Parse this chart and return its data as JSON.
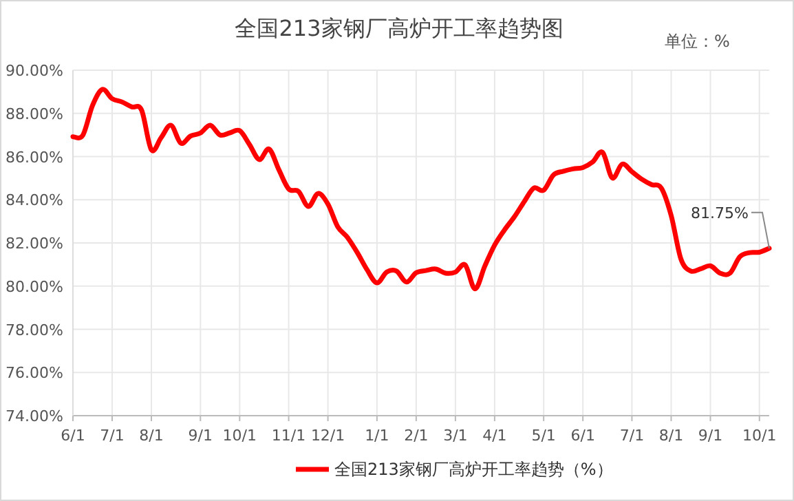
{
  "chart_data": {
    "type": "line",
    "title": "全国213家钢厂高炉开工率趋势图",
    "annotations": [
      "单位：%"
    ],
    "categories": [
      "6/1",
      null,
      null,
      null,
      "7/1",
      null,
      null,
      null,
      "8/1",
      null,
      null,
      null,
      null,
      "9/1",
      null,
      null,
      null,
      "10/1",
      null,
      null,
      null,
      null,
      "11/1",
      null,
      null,
      null,
      "12/1",
      null,
      null,
      null,
      null,
      "1/1",
      null,
      null,
      null,
      "2/1",
      null,
      null,
      null,
      "3/1",
      null,
      null,
      null,
      "4/1",
      null,
      null,
      null,
      null,
      "5/1",
      null,
      null,
      null,
      "6/1",
      null,
      null,
      null,
      null,
      "7/1",
      null,
      null,
      null,
      "8/1",
      null,
      null,
      null,
      "9/1",
      null,
      null,
      null,
      null,
      "10/1",
      null
    ],
    "series": [
      {
        "name": "全国213家钢厂高炉开工率趋势（%）",
        "color": "#ff0000",
        "values": [
          86.92,
          86.98,
          88.37,
          89.11,
          88.68,
          88.53,
          88.3,
          88.15,
          86.31,
          86.88,
          87.45,
          86.62,
          86.95,
          87.09,
          87.45,
          87.0,
          87.1,
          87.2,
          86.56,
          85.86,
          86.35,
          85.39,
          84.5,
          84.39,
          83.69,
          84.29,
          83.8,
          82.75,
          82.25,
          81.55,
          80.75,
          80.15,
          80.65,
          80.7,
          80.19,
          80.62,
          80.72,
          80.79,
          80.6,
          80.65,
          80.98,
          79.87,
          80.93,
          81.9,
          82.6,
          83.2,
          83.9,
          84.54,
          84.44,
          85.15,
          85.32,
          85.43,
          85.49,
          85.75,
          86.2,
          85.01,
          85.65,
          85.3,
          84.95,
          84.7,
          84.54,
          83.27,
          81.25,
          80.7,
          80.8,
          80.94,
          80.6,
          80.6,
          81.36,
          81.55,
          81.57,
          81.75
        ],
        "value_labels": [
          null,
          null,
          null,
          null,
          null,
          null,
          null,
          null,
          null,
          null,
          null,
          null,
          null,
          null,
          null,
          null,
          null,
          null,
          null,
          null,
          null,
          null,
          null,
          null,
          null,
          null,
          null,
          null,
          null,
          null,
          null,
          null,
          null,
          null,
          null,
          null,
          null,
          null,
          null,
          null,
          null,
          null,
          null,
          null,
          null,
          null,
          null,
          null,
          null,
          null,
          null,
          null,
          null,
          null,
          null,
          null,
          null,
          null,
          null,
          null,
          null,
          null,
          null,
          null,
          null,
          null,
          null,
          null,
          null,
          null,
          null,
          "81.75%"
        ]
      }
    ],
    "ylim": [
      74,
      90
    ],
    "yticks": [
      {
        "value": 74,
        "label": "74.00%"
      },
      {
        "value": 76,
        "label": "76.00%"
      },
      {
        "value": 78,
        "label": "78.00%"
      },
      {
        "value": 80,
        "label": "80.00%"
      },
      {
        "value": 82,
        "label": "82.00%"
      },
      {
        "value": 84,
        "label": "84.00%"
      },
      {
        "value": 86,
        "label": "86.00%"
      },
      {
        "value": 88,
        "label": "88.00%"
      },
      {
        "value": 90,
        "label": "90.00%"
      }
    ],
    "grid": true,
    "legend": "bottom",
    "marker": "none",
    "line_style": "solid"
  }
}
